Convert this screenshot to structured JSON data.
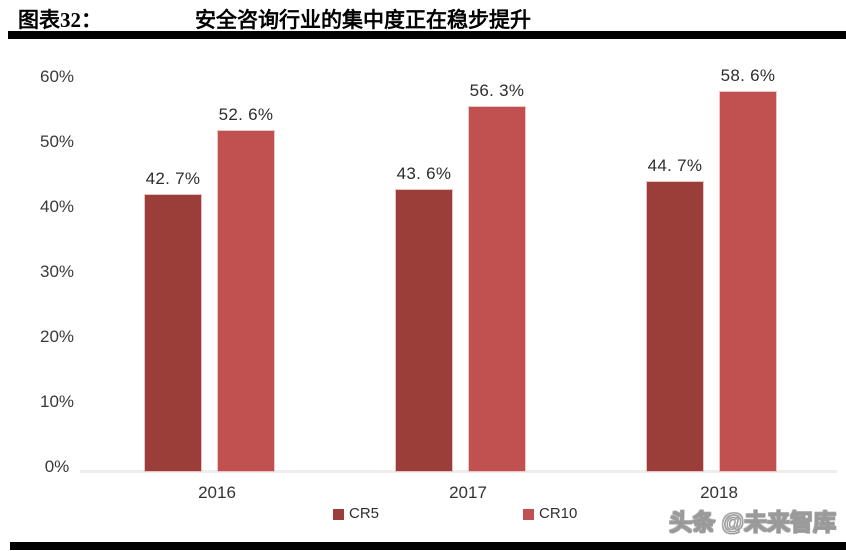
{
  "header": {
    "label": "图表32：",
    "title": "安全咨询行业的集中度正在稳步提升"
  },
  "watermark": "头条 @未来智库",
  "colors": {
    "cr5": "#9B3E39",
    "cr10": "#C05150",
    "axis_line": "#EDEDED",
    "rule": "#000000"
  },
  "chart_data": {
    "type": "bar",
    "title": "安全咨询行业的集中度正在稳步提升",
    "categories": [
      "2016",
      "2017",
      "2018"
    ],
    "series": [
      {
        "name": "CR5",
        "color": "#9B3E39",
        "values": [
          42.7,
          43.6,
          44.7
        ],
        "labels": [
          "42. 7%",
          "43. 6%",
          "44. 7%"
        ]
      },
      {
        "name": "CR10",
        "color": "#C05150",
        "values": [
          52.6,
          56.3,
          58.6
        ],
        "labels": [
          "52. 6%",
          "56. 3%",
          "58. 6%"
        ]
      }
    ],
    "xlabel": "",
    "ylabel": "",
    "ylim": [
      0,
      60
    ],
    "ytick_labels": [
      "0%",
      "10%",
      "20%",
      "30%",
      "40%",
      "50%",
      "60%"
    ],
    "ytick_values": [
      0,
      10,
      20,
      30,
      40,
      50,
      60
    ],
    "grid": false,
    "legend_position": "bottom"
  }
}
